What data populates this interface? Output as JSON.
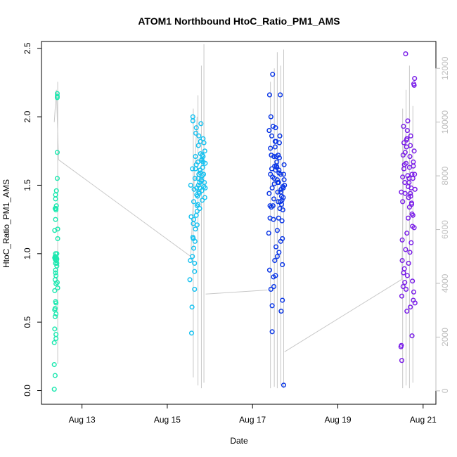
{
  "chart_data": {
    "type": "scatter",
    "title": "ATOM1 Northbound HtoC_Ratio_PM1_AMS",
    "xlabel": "Date",
    "ylabel": "HtoC_Ratio_PM1_AMS",
    "x_axis": {
      "unit": "day of August",
      "range": [
        12.05,
        21.3
      ],
      "ticks": [
        13,
        15,
        17,
        19,
        21
      ],
      "tick_labels": [
        "Aug 13",
        "Aug 15",
        "Aug 17",
        "Aug 19",
        "Aug 21"
      ]
    },
    "y_axis": {
      "range": [
        -0.1,
        2.55
      ],
      "ticks": [
        0.0,
        0.5,
        1.0,
        1.5,
        2.0,
        2.5
      ],
      "tick_labels": [
        "0.0",
        "0.5",
        "1.0",
        "1.5",
        "2.0",
        "2.5"
      ]
    },
    "y2_axis": {
      "range": [
        -500,
        13000
      ],
      "ticks": [
        0,
        2000,
        4000,
        6000,
        8000,
        10000,
        12000
      ],
      "tick_labels": [
        "0",
        "2000",
        "4000",
        "6000",
        "8000",
        "10000",
        "12000"
      ],
      "color": "#bdbdbd"
    },
    "grid": false,
    "legend": "none",
    "colors": {
      "group1": "#1ee8b0",
      "group2": "#19c2f0",
      "group3": "#0a36e6",
      "group4": "#7a1ee8",
      "line": "#c8c8c8"
    },
    "series": [
      {
        "color_key": "group1",
        "x": [
          12.35,
          12.35,
          12.35,
          12.36,
          12.36,
          12.36,
          12.36,
          12.36,
          12.37,
          12.37,
          12.37,
          12.37,
          12.37,
          12.37,
          12.37,
          12.38,
          12.38,
          12.38,
          12.38,
          12.38,
          12.38,
          12.38,
          12.38,
          12.38,
          12.39,
          12.39,
          12.39,
          12.39,
          12.39,
          12.39,
          12.39,
          12.39,
          12.4,
          12.4,
          12.4,
          12.4,
          12.41,
          12.41,
          12.41,
          12.41,
          12.42,
          12.42,
          12.42,
          12.42,
          12.42,
          12.42,
          12.43,
          12.43,
          12.43
        ],
        "y": [
          0.01,
          0.19,
          0.35,
          0.45,
          0.59,
          0.73,
          0.97,
          1.17,
          1.33,
          0.96,
          0.98,
          0.11,
          0.54,
          0.6,
          0.81,
          1.43,
          1.4,
          1.25,
          0.97,
          0.93,
          1.0,
          0.88,
          0.86,
          0.65,
          0.64,
          0.56,
          0.41,
          0.38,
          0.78,
          0.84,
          1.32,
          1.33,
          1.35,
          1.46,
          0.95,
          0.97,
          0.91,
          0.93,
          0.96,
          1.0,
          1.55,
          1.74,
          2.14,
          2.17,
          2.15,
          0.79,
          0.75,
          1.18,
          1.11
        ]
      },
      {
        "color_key": "group2",
        "x": [
          15.53,
          15.54,
          15.55,
          15.56,
          15.57,
          15.58,
          15.59,
          15.6,
          15.6,
          15.61,
          15.62,
          15.62,
          15.63,
          15.64,
          15.64,
          15.65,
          15.66,
          15.66,
          15.67,
          15.68,
          15.68,
          15.69,
          15.7,
          15.7,
          15.71,
          15.72,
          15.72,
          15.73,
          15.74,
          15.74,
          15.75,
          15.76,
          15.76,
          15.77,
          15.78,
          15.78,
          15.79,
          15.8,
          15.8,
          15.81,
          15.82,
          15.82,
          15.83,
          15.84,
          15.84,
          15.85,
          15.86,
          15.87,
          15.88,
          15.89,
          15.59,
          15.62,
          15.66,
          15.7,
          15.74,
          15.78,
          15.82,
          15.86,
          15.6,
          15.64,
          15.68,
          15.72,
          15.76,
          15.8,
          15.84,
          15.88,
          15.61,
          15.65,
          15.69,
          15.73,
          15.77,
          15.81,
          15.85,
          15.89
        ],
        "y": [
          0.81,
          0.95,
          1.5,
          1.27,
          0.42,
          0.61,
          1.62,
          1.97,
          2.0,
          1.11,
          1.25,
          1.38,
          1.47,
          0.87,
          0.74,
          1.55,
          1.62,
          1.71,
          1.88,
          1.92,
          1.65,
          1.48,
          1.35,
          1.21,
          1.42,
          1.55,
          1.67,
          1.79,
          1.86,
          1.58,
          1.44,
          1.33,
          1.52,
          1.61,
          1.73,
          1.82,
          1.95,
          1.68,
          1.54,
          1.46,
          1.39,
          1.57,
          1.63,
          1.71,
          1.84,
          1.58,
          1.49,
          1.52,
          1.41,
          1.66,
          0.98,
          1.04,
          1.18,
          1.31,
          1.45,
          1.59,
          1.72,
          1.81,
          1.12,
          0.93,
          1.28,
          1.36,
          1.48,
          1.53,
          1.67,
          1.75,
          1.22,
          1.09,
          1.43,
          1.5,
          1.61,
          1.69,
          1.58,
          1.48
        ]
      },
      {
        "color_key": "group3",
        "x": [
          17.38,
          17.39,
          17.4,
          17.41,
          17.42,
          17.43,
          17.44,
          17.45,
          17.46,
          17.47,
          17.48,
          17.49,
          17.5,
          17.51,
          17.52,
          17.53,
          17.54,
          17.55,
          17.56,
          17.57,
          17.58,
          17.59,
          17.6,
          17.61,
          17.62,
          17.63,
          17.64,
          17.65,
          17.66,
          17.67,
          17.68,
          17.69,
          17.7,
          17.71,
          17.72,
          17.73,
          17.74,
          17.75,
          17.4,
          17.43,
          17.46,
          17.49,
          17.52,
          17.55,
          17.58,
          17.61,
          17.64,
          17.67,
          17.7,
          17.73,
          17.39,
          17.42,
          17.45,
          17.48,
          17.51,
          17.54,
          17.57,
          17.6,
          17.63,
          17.66,
          17.69,
          17.72,
          17.41,
          17.44,
          17.47,
          17.5,
          17.53,
          17.56,
          17.59,
          17.62,
          17.65,
          17.68,
          17.71,
          17.74,
          17.46,
          17.5,
          17.54,
          17.58,
          17.62,
          17.66,
          17.7
        ],
        "y": [
          1.15,
          1.44,
          2.16,
          1.35,
          1.58,
          2.0,
          1.72,
          1.62,
          1.48,
          2.31,
          1.35,
          1.25,
          1.4,
          1.55,
          1.64,
          1.78,
          1.92,
          1.82,
          1.71,
          1.63,
          1.54,
          1.45,
          1.38,
          1.52,
          1.61,
          1.7,
          1.86,
          2.16,
          1.58,
          1.47,
          1.36,
          1.24,
          1.11,
          1.32,
          1.41,
          1.58,
          1.65,
          1.5,
          0.88,
          0.74,
          0.43,
          0.83,
          0.95,
          1.05,
          1.17,
          1.26,
          1.33,
          0.58,
          0.66,
          0.04,
          1.9,
          1.77,
          1.86,
          1.93,
          1.51,
          1.61,
          1.67,
          1.72,
          1.81,
          1.45,
          1.39,
          1.48,
          1.26,
          1.34,
          1.56,
          1.71,
          1.82,
          1.64,
          1.52,
          1.59,
          1.38,
          1.42,
          1.49,
          1.54,
          0.62,
          0.76,
          0.84,
          0.98,
          1.01,
          1.09,
          0.92
        ]
      },
      {
        "color_key": "group4",
        "x": [
          20.48,
          20.49,
          20.5,
          20.51,
          20.52,
          20.53,
          20.54,
          20.55,
          20.56,
          20.57,
          20.58,
          20.59,
          20.6,
          20.61,
          20.62,
          20.63,
          20.64,
          20.65,
          20.66,
          20.67,
          20.68,
          20.69,
          20.7,
          20.71,
          20.72,
          20.73,
          20.74,
          20.75,
          20.76,
          20.77,
          20.78,
          20.79,
          20.8,
          20.81,
          20.5,
          20.53,
          20.56,
          20.59,
          20.62,
          20.65,
          20.68,
          20.71,
          20.74,
          20.77,
          20.8,
          20.49,
          20.52,
          20.55,
          20.58,
          20.61,
          20.64,
          20.67,
          20.7,
          20.73,
          20.76,
          20.79,
          20.51,
          20.54,
          20.57,
          20.6,
          20.63,
          20.66,
          20.69,
          20.72,
          20.75,
          20.78,
          20.81,
          20.62,
          20.7,
          20.74,
          20.77,
          20.79
        ],
        "y": [
          0.32,
          0.33,
          0.22,
          1.1,
          1.38,
          1.72,
          1.93,
          1.81,
          1.65,
          1.52,
          1.44,
          2.46,
          1.66,
          1.78,
          1.84,
          1.9,
          1.57,
          1.49,
          1.41,
          1.55,
          1.63,
          1.71,
          1.79,
          1.86,
          1.48,
          1.37,
          1.29,
          1.2,
          1.55,
          1.64,
          2.24,
          1.75,
          1.58,
          1.47,
          0.69,
          0.76,
          0.89,
          1.03,
          1.15,
          1.26,
          1.34,
          1.42,
          1.58,
          1.67,
          2.28,
          1.45,
          1.56,
          1.62,
          1.74,
          1.83,
          1.97,
          1.52,
          1.44,
          1.36,
          1.28,
          1.19,
          0.95,
          0.86,
          0.79,
          0.74,
          0.84,
          0.93,
          1.01,
          1.08,
          0.8,
          0.72,
          0.64,
          0.58,
          0.61,
          0.4,
          0.66,
          2.23
        ]
      }
    ],
    "secondary_line": {
      "color_key": "line",
      "segments": [
        {
          "x": [
            12.35,
            12.4,
            12.45
          ],
          "y2": [
            10000,
            11200,
            8600
          ]
        },
        {
          "x": [
            12.45,
            15.55
          ],
          "y2": [
            8600,
            5000
          ]
        },
        {
          "x": [
            15.55,
            15.7
          ],
          "y2": [
            5000,
            10200
          ]
        },
        {
          "x": [
            15.9,
            17.35
          ],
          "y2": [
            3600,
            3750
          ]
        },
        {
          "x": [
            17.75,
            20.5
          ],
          "y2": [
            1450,
            4150
          ]
        },
        {
          "x": [
            20.5,
            20.55,
            20.6
          ],
          "y2": [
            4150,
            9000,
            9600
          ]
        }
      ],
      "spikes": [
        {
          "x": 12.43,
          "low": 1000,
          "high": 11500
        },
        {
          "x": 15.61,
          "low": 500,
          "high": 10500
        },
        {
          "x": 15.72,
          "low": 200,
          "high": 11000
        },
        {
          "x": 15.8,
          "low": 100,
          "high": 12100
        },
        {
          "x": 15.86,
          "low": 300,
          "high": 12900
        },
        {
          "x": 17.42,
          "low": 100,
          "high": 11500
        },
        {
          "x": 17.51,
          "low": 150,
          "high": 12000
        },
        {
          "x": 17.58,
          "low": 100,
          "high": 12600
        },
        {
          "x": 17.66,
          "low": 200,
          "high": 12100
        },
        {
          "x": 17.73,
          "low": 100,
          "high": 12700
        },
        {
          "x": 20.52,
          "low": 100,
          "high": 10500
        },
        {
          "x": 20.6,
          "low": 200,
          "high": 11200
        },
        {
          "x": 20.68,
          "low": 100,
          "high": 12100
        },
        {
          "x": 20.76,
          "low": 300,
          "high": 10600
        }
      ]
    }
  }
}
